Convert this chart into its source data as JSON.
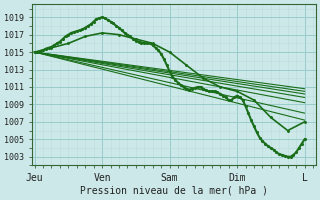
{
  "xlabel": "Pression niveau de la mer( hPa )",
  "background_color": "#cce8e8",
  "grid_major_color": "#99cccc",
  "grid_minor_color": "#bbdddd",
  "line_color": "#1a6e1a",
  "ylim": [
    1002,
    1020.5
  ],
  "yticks": [
    1003,
    1005,
    1007,
    1009,
    1011,
    1013,
    1015,
    1017,
    1019
  ],
  "x_labels": [
    "Jeu",
    "Ven",
    "Sam",
    "Dim",
    "L"
  ],
  "x_positions": [
    0,
    24,
    48,
    72,
    96
  ],
  "xlim": [
    -1,
    100
  ],
  "ensemble_lines": [
    {
      "x0": 0,
      "y0": 1015.0,
      "x1": 96,
      "y1": 1009.2
    },
    {
      "x0": 0,
      "y0": 1015.0,
      "x1": 96,
      "y1": 1009.8
    },
    {
      "x0": 0,
      "y0": 1015.0,
      "x1": 96,
      "y1": 1010.2
    },
    {
      "x0": 0,
      "y0": 1015.0,
      "x1": 96,
      "y1": 1010.5
    },
    {
      "x0": 0,
      "y0": 1015.0,
      "x1": 96,
      "y1": 1010.8
    },
    {
      "x0": 0,
      "y0": 1015.0,
      "x1": 96,
      "y1": 1007.2
    },
    {
      "x0": 0,
      "y0": 1015.0,
      "x1": 96,
      "y1": 1008.0
    }
  ],
  "main_line_x": [
    0,
    1,
    2,
    3,
    4,
    5,
    6,
    7,
    8,
    9,
    10,
    11,
    12,
    13,
    14,
    15,
    16,
    17,
    18,
    19,
    20,
    21,
    22,
    23,
    24,
    25,
    26,
    27,
    28,
    29,
    30,
    31,
    32,
    33,
    34,
    35,
    36,
    37,
    38,
    39,
    40,
    41,
    42,
    43,
    44,
    45,
    46,
    47,
    48,
    49,
    50,
    51,
    52,
    53,
    54,
    55,
    56,
    57,
    58,
    59,
    60,
    61,
    62,
    63,
    64,
    65,
    66,
    67,
    68,
    69,
    70,
    71,
    72,
    73,
    74,
    75,
    76,
    77,
    78,
    79,
    80,
    81,
    82,
    83,
    84,
    85,
    86,
    87,
    88,
    89,
    90,
    91,
    92,
    93,
    94,
    95,
    96
  ],
  "main_line_y": [
    1015.0,
    1015.0,
    1015.1,
    1015.2,
    1015.4,
    1015.5,
    1015.6,
    1015.8,
    1016.0,
    1016.2,
    1016.5,
    1016.8,
    1017.0,
    1017.2,
    1017.3,
    1017.4,
    1017.5,
    1017.6,
    1017.8,
    1018.0,
    1018.2,
    1018.5,
    1018.8,
    1018.9,
    1019.0,
    1018.9,
    1018.7,
    1018.5,
    1018.3,
    1018.0,
    1017.8,
    1017.5,
    1017.2,
    1017.0,
    1016.8,
    1016.5,
    1016.3,
    1016.2,
    1016.1,
    1016.0,
    1016.0,
    1016.0,
    1015.8,
    1015.5,
    1015.2,
    1014.8,
    1014.2,
    1013.5,
    1012.8,
    1012.2,
    1011.8,
    1011.5,
    1011.2,
    1011.0,
    1010.8,
    1010.7,
    1010.8,
    1010.9,
    1011.0,
    1011.0,
    1010.8,
    1010.6,
    1010.5,
    1010.5,
    1010.5,
    1010.4,
    1010.2,
    1010.0,
    1009.8,
    1009.5,
    1009.5,
    1009.8,
    1010.0,
    1009.8,
    1009.5,
    1008.8,
    1008.0,
    1007.2,
    1006.5,
    1005.8,
    1005.2,
    1004.8,
    1004.5,
    1004.2,
    1004.0,
    1003.8,
    1003.5,
    1003.3,
    1003.2,
    1003.1,
    1003.0,
    1003.0,
    1003.2,
    1003.5,
    1004.0,
    1004.5,
    1005.0
  ],
  "second_line_x": [
    0,
    6,
    12,
    18,
    24,
    30,
    36,
    42,
    48,
    54,
    60,
    66,
    72,
    78,
    84,
    90,
    96
  ],
  "second_line_y": [
    1015.0,
    1015.5,
    1016.0,
    1016.8,
    1017.2,
    1017.0,
    1016.5,
    1016.0,
    1015.0,
    1013.5,
    1012.0,
    1011.0,
    1010.5,
    1009.5,
    1007.5,
    1006.0,
    1007.0
  ]
}
